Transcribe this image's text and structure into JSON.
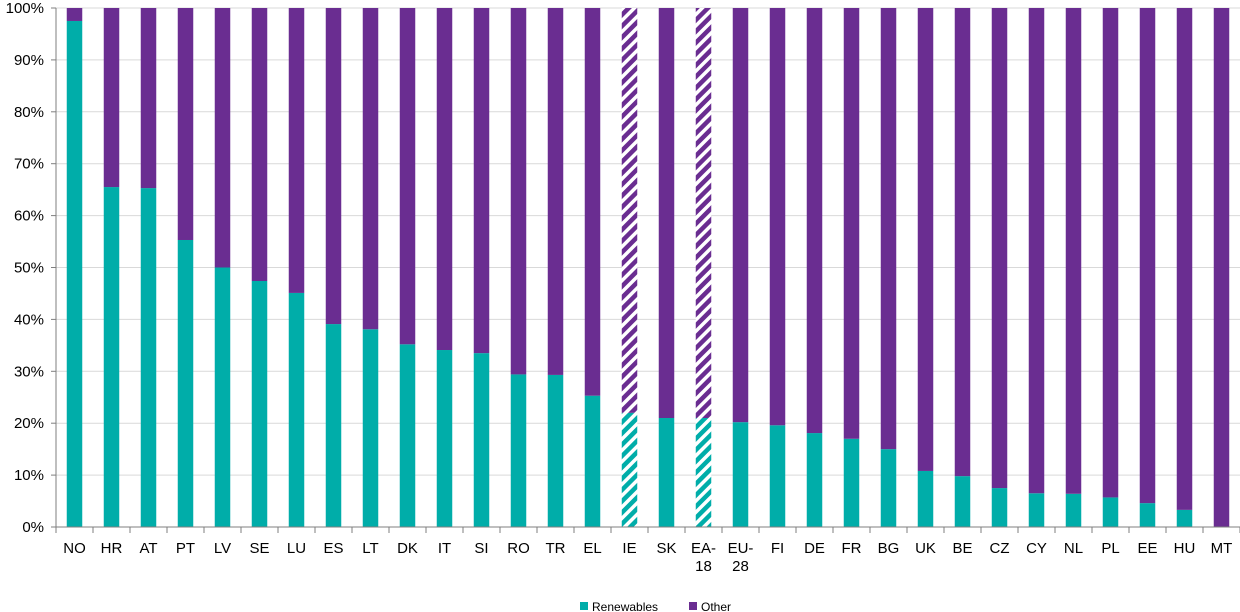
{
  "chart_data": {
    "type": "bar",
    "stacked": true,
    "percent": true,
    "categories": [
      "NO",
      "HR",
      "AT",
      "PT",
      "LV",
      "SE",
      "LU",
      "ES",
      "LT",
      "DK",
      "IT",
      "SI",
      "RO",
      "TR",
      "EL",
      "IE",
      "SK",
      "EA-18",
      "EU-28",
      "FI",
      "DE",
      "FR",
      "BG",
      "UK",
      "BE",
      "CZ",
      "CY",
      "NL",
      "PL",
      "EE",
      "HU",
      "MT"
    ],
    "category_lines": [
      [
        "NO"
      ],
      [
        "HR"
      ],
      [
        "AT"
      ],
      [
        "PT"
      ],
      [
        "LV"
      ],
      [
        "SE"
      ],
      [
        "LU"
      ],
      [
        "ES"
      ],
      [
        "LT"
      ],
      [
        "DK"
      ],
      [
        "IT"
      ],
      [
        "SI"
      ],
      [
        "RO"
      ],
      [
        "TR"
      ],
      [
        "EL"
      ],
      [
        "IE"
      ],
      [
        "SK"
      ],
      [
        "EA-",
        "18"
      ],
      [
        "EU-",
        "28"
      ],
      [
        "FI"
      ],
      [
        "DE"
      ],
      [
        "FR"
      ],
      [
        "BG"
      ],
      [
        "UK"
      ],
      [
        "BE"
      ],
      [
        "CZ"
      ],
      [
        "CY"
      ],
      [
        "NL"
      ],
      [
        "PL"
      ],
      [
        "EE"
      ],
      [
        "HU"
      ],
      [
        "MT"
      ]
    ],
    "hatched_categories": [
      "IE",
      "EA-18"
    ],
    "series": [
      {
        "name": "Renewables",
        "color": "#00ADA9",
        "values": [
          97.5,
          65.5,
          65.3,
          55.3,
          50.0,
          47.4,
          45.1,
          39.1,
          38.1,
          35.2,
          34.1,
          33.5,
          29.4,
          29.3,
          25.3,
          22.0,
          21.0,
          21.0,
          20.2,
          19.6,
          18.1,
          17.0,
          15.0,
          10.8,
          9.8,
          7.5,
          6.5,
          6.4,
          5.7,
          4.6,
          3.3,
          0.0
        ]
      },
      {
        "name": "Other",
        "color": "#6A2D91",
        "values": [
          2.5,
          34.5,
          34.7,
          44.7,
          50.0,
          52.6,
          54.9,
          60.9,
          61.9,
          64.8,
          65.9,
          66.5,
          70.6,
          70.7,
          74.7,
          78.0,
          79.0,
          79.0,
          79.8,
          80.4,
          81.9,
          83.0,
          85.0,
          89.2,
          90.2,
          92.5,
          93.5,
          93.6,
          94.3,
          95.4,
          96.7,
          100.0
        ]
      }
    ],
    "ylim": [
      0,
      100
    ],
    "yticks": [
      "0%",
      "10%",
      "20%",
      "30%",
      "40%",
      "50%",
      "60%",
      "70%",
      "80%",
      "90%",
      "100%"
    ],
    "grid": true,
    "legend_position": "bottom-center",
    "title": "",
    "xlabel": "",
    "ylabel": ""
  }
}
